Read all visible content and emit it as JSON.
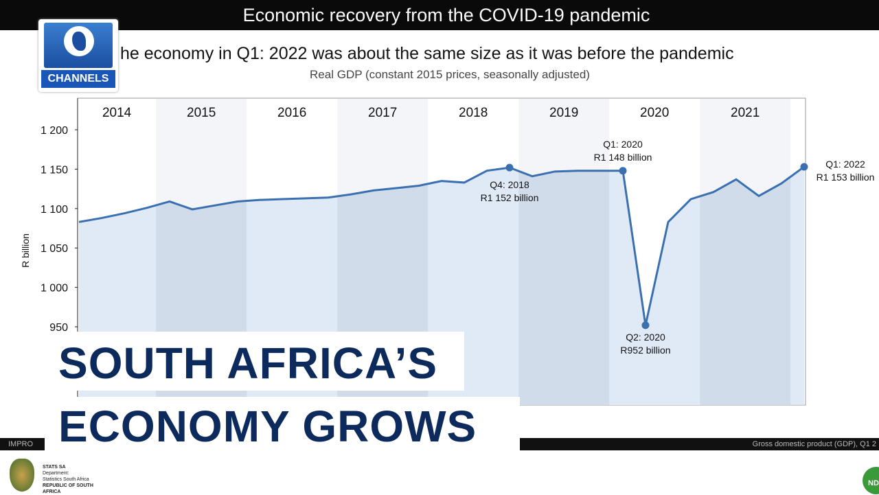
{
  "broadcast": {
    "channel_logo": "CHANNELS",
    "lower_third": [
      "SOUTH AFRICA’S",
      "ECONOMY GROWS"
    ],
    "band_left": "IMPRO",
    "band_right": "Gross domestic product (GDP), Q1 2",
    "footer_left": [
      "STATS SA",
      "Department:",
      "Statistics South Africa",
      "REPUBLIC OF SOUTH AFRICA"
    ],
    "footer_right": "NDP"
  },
  "slide": {
    "title": "Economic recovery from the COVID-19 pandemic",
    "headline": "he economy in Q1: 2022 was about the same size as it was before the pandemic"
  },
  "chart_data": {
    "type": "area",
    "title": "Real GDP (constant 2015 prices, seasonally adjusted)",
    "ylabel": "R billion",
    "xlabel": "",
    "ylim": [
      850,
      1240
    ],
    "yticks": [
      "950",
      "1 000",
      "1 050",
      "1 100",
      "1 150",
      "1 200"
    ],
    "ytick_values": [
      950,
      1000,
      1050,
      1100,
      1150,
      1200
    ],
    "years": [
      "2014",
      "2015",
      "2016",
      "2017",
      "2018",
      "2019",
      "2020",
      "2021"
    ],
    "x": [
      "Q1 2014",
      "Q2 2014",
      "Q3 2014",
      "Q4 2014",
      "Q1 2015",
      "Q2 2015",
      "Q3 2015",
      "Q4 2015",
      "Q1 2016",
      "Q2 2016",
      "Q3 2016",
      "Q4 2016",
      "Q1 2017",
      "Q2 2017",
      "Q3 2017",
      "Q4 2017",
      "Q1 2018",
      "Q2 2018",
      "Q3 2018",
      "Q4 2018",
      "Q1 2019",
      "Q2 2019",
      "Q3 2019",
      "Q4 2019",
      "Q1 2020",
      "Q2 2020",
      "Q3 2020",
      "Q4 2020",
      "Q1 2021",
      "Q2 2021",
      "Q3 2021",
      "Q4 2021",
      "Q1 2022"
    ],
    "values": [
      1083,
      1088,
      1094,
      1101,
      1109,
      1099,
      1104,
      1109,
      1111,
      1112,
      1113,
      1114,
      1118,
      1123,
      1126,
      1129,
      1135,
      1133,
      1148,
      1152,
      1141,
      1147,
      1148,
      1148,
      1148,
      952,
      1083,
      1112,
      1121,
      1137,
      1116,
      1132,
      1153
    ],
    "annotations": [
      {
        "index": 19,
        "lines": [
          "Q4: 2018",
          "R1 152 billion"
        ]
      },
      {
        "index": 24,
        "lines": [
          "Q1: 2020",
          "R1 148 billion"
        ]
      },
      {
        "index": 25,
        "lines": [
          "Q2: 2020",
          "R952 billion"
        ]
      },
      {
        "index": 32,
        "lines": [
          "Q1: 2022",
          "R1 153 billion"
        ]
      }
    ],
    "grid": false,
    "colors": {
      "line": "#3a6fb0",
      "fill": "#dbe6f4",
      "band_alt": "#c9d5e6"
    }
  }
}
